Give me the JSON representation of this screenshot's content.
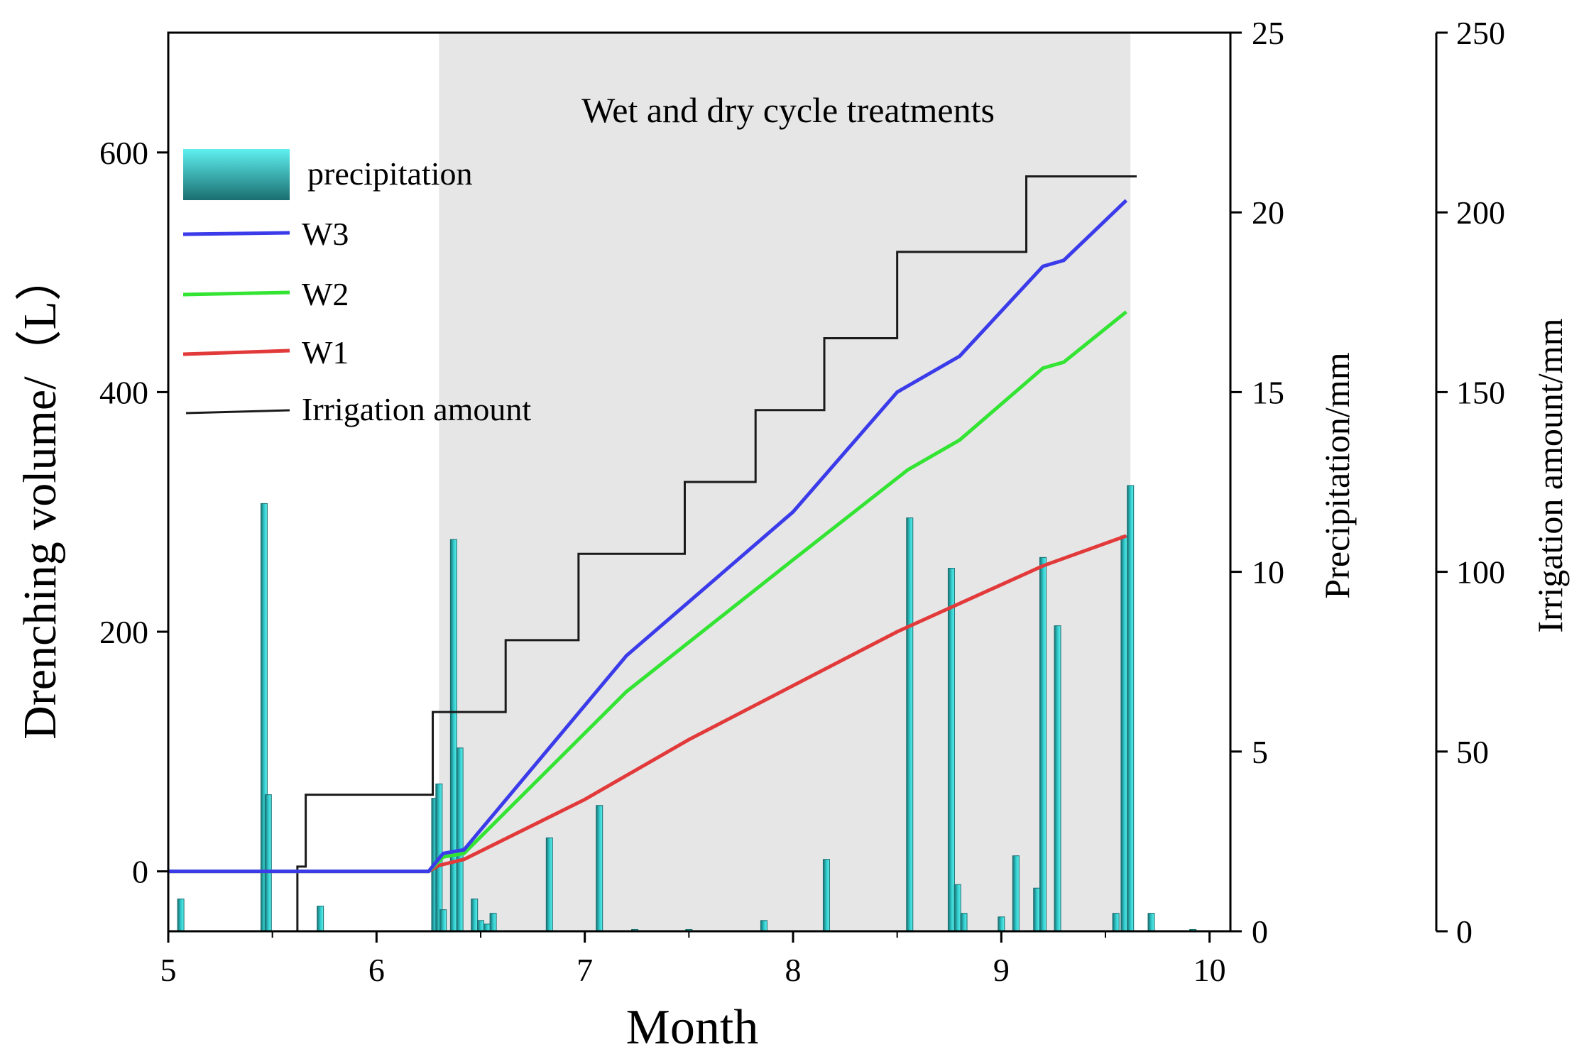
{
  "chart_data": {
    "type": "bar+line",
    "annotation": "Wet and dry cycle treatments",
    "xlabel": "Month",
    "ylabel_left": "Drenching volume/（L）",
    "ylabel_right1": "Precipitation/mm",
    "ylabel_right2": "Irrigation amount/mm",
    "xlim": [
      5,
      10.1
    ],
    "ylim_left": [
      -50,
      700
    ],
    "ylim_precip": [
      0,
      25
    ],
    "ylim_irrig": [
      0,
      250
    ],
    "x_ticks": [
      5,
      6,
      7,
      8,
      9,
      10
    ],
    "x_tick_labels": [
      "5",
      "6",
      "7",
      "8",
      "9",
      "10"
    ],
    "left_ticks": [
      0,
      200,
      400,
      600
    ],
    "left_tick_labels": [
      "0",
      "200",
      "400",
      "600"
    ],
    "precip_ticks": [
      0,
      5,
      10,
      15,
      20,
      25
    ],
    "precip_tick_labels": [
      "0",
      "5",
      "10",
      "15",
      "20",
      "25"
    ],
    "irrig_ticks": [
      0,
      50,
      100,
      150,
      200,
      250
    ],
    "irrig_tick_labels": [
      "0",
      "50",
      "100",
      "150",
      "200",
      "250"
    ],
    "shaded_region": [
      6.3,
      9.62
    ],
    "legend": [
      "precipitation",
      "W3",
      "W2",
      "W1",
      "Irrigation amount"
    ],
    "colors": {
      "precip_bar": "#2fc9c9",
      "precip_bar_dark": "#1a6e70",
      "W3": "#3b3bea",
      "W2": "#33e433",
      "W1": "#e23a3a",
      "irrigation": "#1a1a1a",
      "shade": "#e6e6e6"
    },
    "precipitation": {
      "x": [
        5.06,
        5.46,
        5.48,
        5.73,
        6.28,
        6.3,
        6.32,
        6.37,
        6.4,
        6.47,
        6.5,
        6.53,
        6.56,
        6.83,
        7.07,
        7.24,
        7.5,
        7.86,
        8.16,
        8.56,
        8.76,
        8.79,
        8.82,
        9.0,
        9.07,
        9.17,
        9.2,
        9.27,
        9.55,
        9.59,
        9.62,
        9.72,
        9.92
      ],
      "values": [
        0.9,
        11.9,
        3.8,
        0.7,
        3.7,
        4.1,
        0.6,
        10.9,
        5.1,
        0.9,
        0.3,
        0.2,
        0.5,
        2.6,
        3.5,
        0.05,
        0.05,
        0.3,
        2.0,
        11.5,
        10.1,
        1.3,
        0.5,
        0.4,
        2.1,
        1.2,
        10.4,
        8.5,
        0.5,
        11.0,
        12.4,
        0.5,
        0.05
      ]
    },
    "irrigation": {
      "x": [
        5.62,
        5.66,
        6.27,
        6.62,
        6.97,
        7.48,
        7.82,
        8.15,
        8.5,
        9.12,
        9.65
      ],
      "values": [
        18,
        38,
        61,
        81,
        105,
        125,
        145,
        165,
        189,
        210,
        210
      ]
    },
    "W3": {
      "x": [
        5.0,
        6.25,
        6.32,
        6.42,
        7.2,
        8.0,
        8.5,
        8.8,
        9.2,
        9.3,
        9.6
      ],
      "values": [
        0,
        0,
        15,
        18,
        180,
        300,
        400,
        430,
        505,
        510,
        560
      ]
    },
    "W2": {
      "x": [
        5.0,
        6.25,
        6.32,
        6.42,
        7.2,
        8.0,
        8.55,
        8.8,
        9.2,
        9.3,
        9.6
      ],
      "values": [
        0,
        0,
        12,
        15,
        150,
        260,
        335,
        360,
        420,
        425,
        467
      ]
    },
    "W1": {
      "x": [
        5.0,
        6.25,
        6.3,
        6.42,
        7.0,
        7.5,
        8.0,
        8.5,
        9.2,
        9.6
      ],
      "values": [
        0,
        0,
        5,
        10,
        60,
        110,
        155,
        200,
        255,
        280
      ]
    }
  }
}
